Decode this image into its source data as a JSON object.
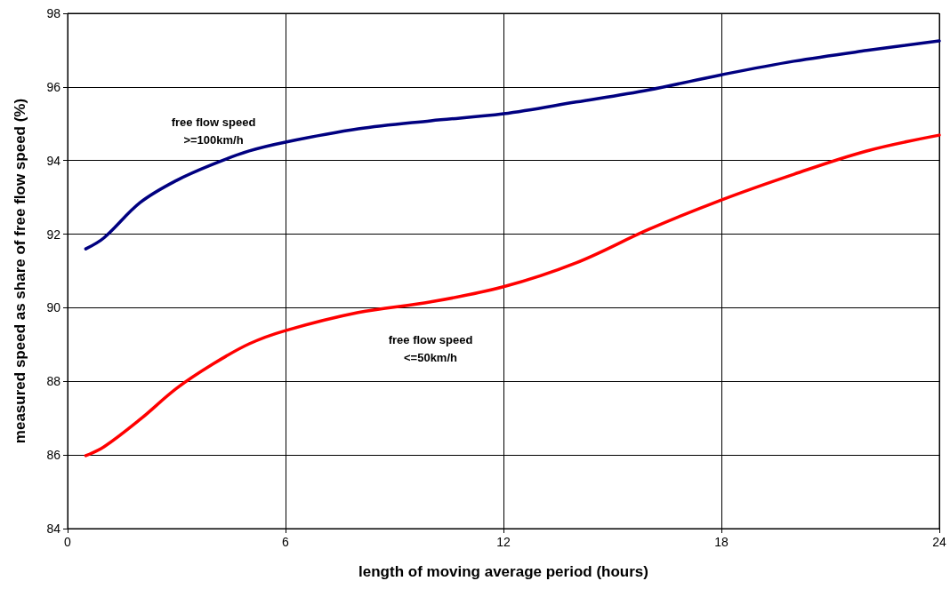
{
  "chart_data": {
    "type": "line",
    "xlabel": "length of moving average period (hours)",
    "ylabel": "measured speed as share of free flow speed (%)",
    "xlim": [
      0,
      24
    ],
    "xticks": [
      0,
      6,
      12,
      18,
      24
    ],
    "ylim": [
      84,
      98
    ],
    "yticks": [
      84,
      86,
      88,
      90,
      92,
      94,
      96,
      98
    ],
    "grid": true,
    "marker": "none",
    "line_style": "solid",
    "series": [
      {
        "color": "#000080",
        "x": [
          0.5,
          1,
          2,
          3,
          4,
          5,
          6,
          8,
          10,
          12,
          14,
          16,
          18,
          20,
          22,
          24
        ],
        "values": [
          91.6,
          91.9,
          92.86,
          93.46,
          93.9,
          94.26,
          94.5,
          94.86,
          95.08,
          95.27,
          95.59,
          95.92,
          96.33,
          96.7,
          96.99,
          97.25
        ]
      },
      {
        "color": "#ff0000",
        "x": [
          0.5,
          1,
          2,
          3,
          4,
          5,
          6,
          8,
          10,
          12,
          14,
          16,
          18,
          20,
          22,
          24
        ],
        "values": [
          85.98,
          86.22,
          86.97,
          87.81,
          88.47,
          89.02,
          89.38,
          89.87,
          90.16,
          90.57,
          91.22,
          92.13,
          92.93,
          93.63,
          94.26,
          94.69
        ]
      }
    ],
    "annotations": [
      "free flow speed\n>=100km/h",
      "free flow speed\n<=50km/h"
    ]
  }
}
